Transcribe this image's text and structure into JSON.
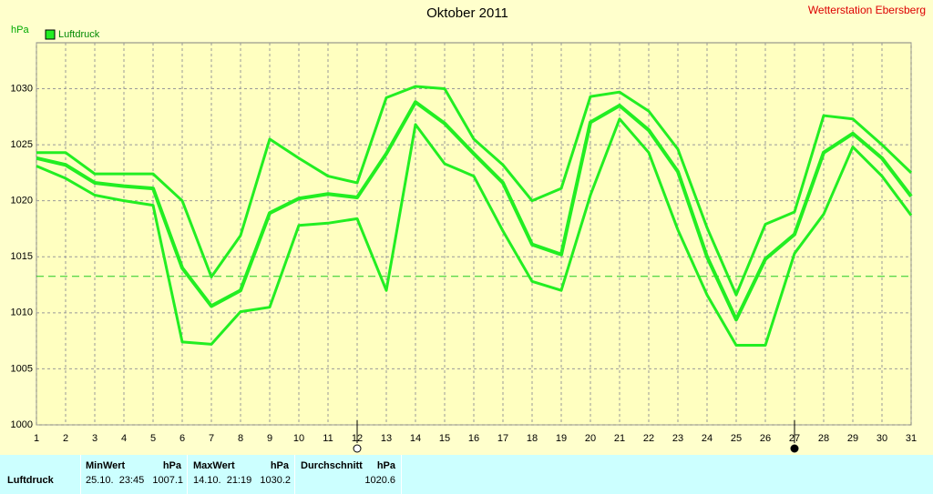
{
  "chart_data": {
    "type": "line",
    "title": "Oktober 2011",
    "station": "Wetterstation Ebersberg",
    "y_label": "hPa",
    "x": [
      1,
      2,
      3,
      4,
      5,
      6,
      7,
      8,
      9,
      10,
      11,
      12,
      13,
      14,
      15,
      16,
      17,
      18,
      19,
      20,
      21,
      22,
      23,
      24,
      25,
      26,
      27,
      28,
      29,
      30,
      31
    ],
    "xlim": [
      1,
      31
    ],
    "xticks": [
      1,
      2,
      3,
      4,
      5,
      6,
      7,
      8,
      9,
      10,
      11,
      12,
      13,
      14,
      15,
      16,
      17,
      18,
      19,
      20,
      21,
      22,
      23,
      24,
      25,
      26,
      27,
      28,
      29,
      30,
      31
    ],
    "ylim": [
      1000,
      1034.1
    ],
    "yticks": [
      1000,
      1005,
      1010,
      1015,
      1020,
      1025,
      1030
    ],
    "grid": true,
    "reference_line": 1013.25,
    "markers": [
      {
        "x": 12,
        "filled": false
      },
      {
        "x": 27,
        "filled": true
      }
    ],
    "series": [
      {
        "color": "#22ee22",
        "values": [
          1024.3,
          1024.3,
          1022.4,
          1022.4,
          1022.4,
          1020,
          1013.2,
          1016.9,
          1025.5,
          1023.8,
          1022.2,
          1021.6,
          1029.2,
          1030.2,
          1030,
          1025.5,
          1023.2,
          1020,
          1021.1,
          1029.3,
          1029.7,
          1028,
          1024.6,
          1017.6,
          1011.6,
          1017.9,
          1019,
          1027.6,
          1027.3,
          1025,
          1022.5
        ]
      },
      {
        "name": "Luftdruck",
        "color": "#22ee22",
        "values": [
          1023.8,
          1023.2,
          1021.6,
          1021.3,
          1021.1,
          1014,
          1010.6,
          1012,
          1018.9,
          1020.2,
          1020.6,
          1020.3,
          1024.2,
          1028.8,
          1026.9,
          1024.2,
          1021.6,
          1016.1,
          1015.2,
          1027,
          1028.5,
          1026.3,
          1022.6,
          1015,
          1009.4,
          1014.8,
          1017,
          1024.3,
          1026,
          1023.8,
          1020.4
        ]
      },
      {
        "color": "#22ee22",
        "values": [
          1023.1,
          1022,
          1020.5,
          1020,
          1019.6,
          1007.4,
          1007.2,
          1010.1,
          1010.5,
          1017.8,
          1018,
          1018.4,
          1012,
          1026.8,
          1023.3,
          1022.2,
          1017.3,
          1012.8,
          1012,
          1020.5,
          1027.3,
          1024.3,
          1017.4,
          1011.6,
          1007.1,
          1007.1,
          1015.3,
          1018.8,
          1024.8,
          1022.2,
          1018.7
        ]
      }
    ]
  },
  "summary_table": {
    "row_label": "Luftdruck",
    "columns": [
      {
        "name": "MinWert",
        "unit": "hPa",
        "time": "25.10.  23:45",
        "value": "1007.1"
      },
      {
        "name": "MaxWert",
        "unit": "hPa",
        "time": "14.10.  21:19",
        "value": "1030.2"
      },
      {
        "name": "Durchschnitt",
        "unit": "hPa",
        "value": "1020.6"
      }
    ]
  }
}
